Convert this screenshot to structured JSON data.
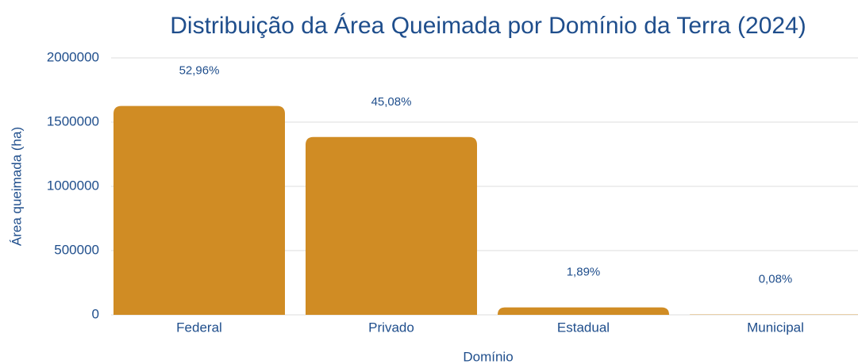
{
  "chart_data": {
    "type": "bar",
    "title": "Distribuição da Área Queimada por Domínio da Terra (2024)",
    "x_label": "Domínio",
    "y_label": "Área queimada (ha)",
    "categories": [
      "Federal",
      "Privado",
      "Estadual",
      "Municipal"
    ],
    "values": [
      1626000,
      1384000,
      58000,
      2500
    ],
    "percent_values": [
      52.96,
      45.08,
      1.89,
      0.08
    ],
    "percent_labels": [
      "52,96%",
      "45,08%",
      "1,89%",
      "0,08%"
    ],
    "color": "#d08c24",
    "ylim": [
      0,
      2000000
    ],
    "yticks": [
      0,
      500000,
      1000000,
      1500000,
      2000000
    ],
    "grid": true
  }
}
